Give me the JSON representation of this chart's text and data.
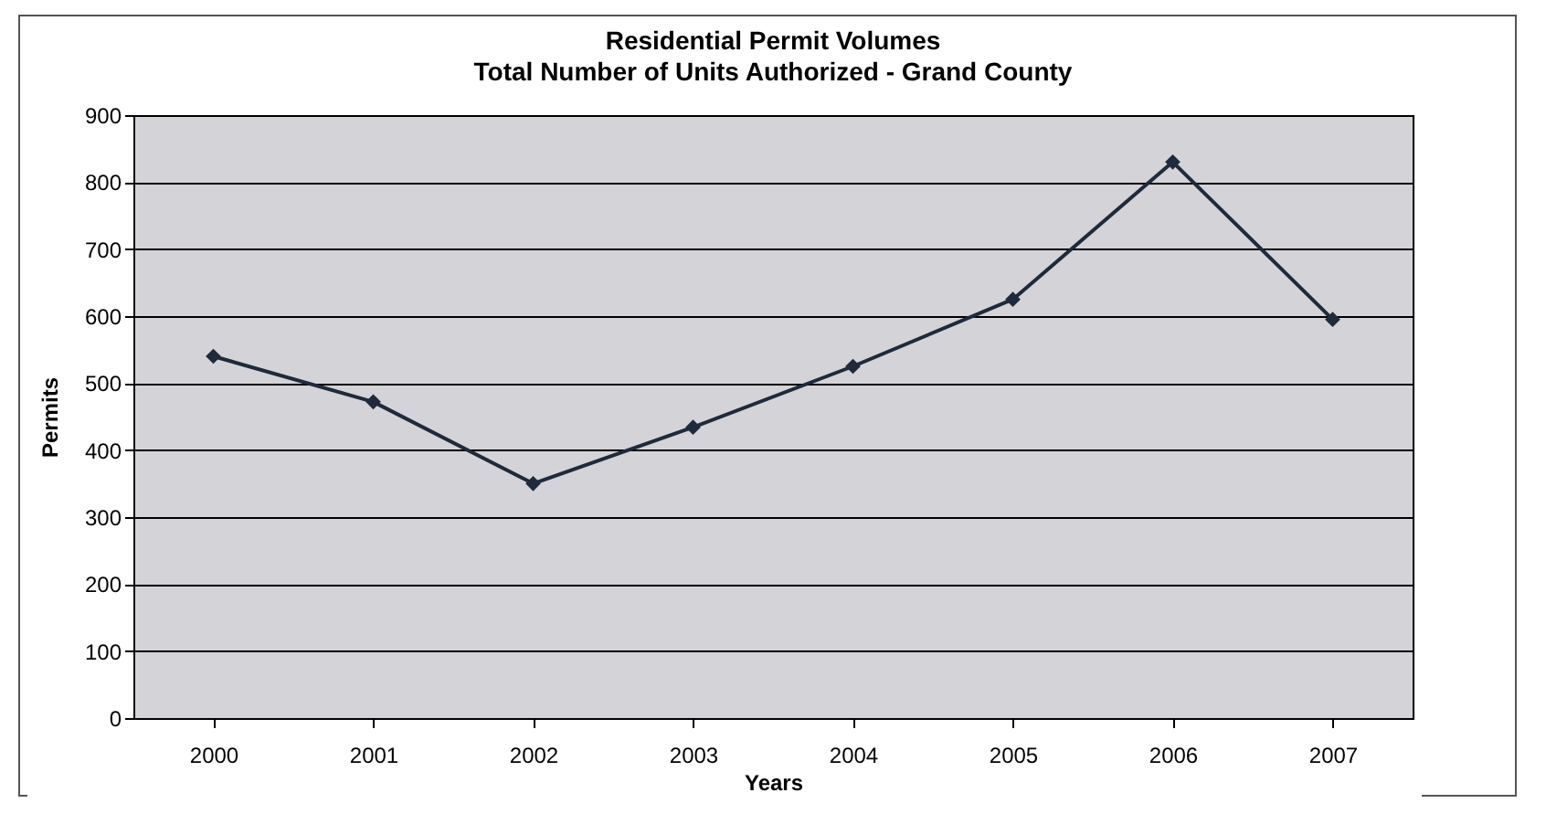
{
  "chart_data": {
    "type": "line",
    "title": "Residential Permit Volumes",
    "subtitle": "Total Number of Units Authorized - Grand County",
    "xlabel": "Years",
    "ylabel": "Permits",
    "categories": [
      "2000",
      "2001",
      "2002",
      "2003",
      "2004",
      "2005",
      "2006",
      "2007"
    ],
    "series": [
      {
        "color": "#1f2a3a",
        "values": [
          540,
          472,
          350,
          434,
          525,
          625,
          830,
          595
        ]
      }
    ],
    "ylim": [
      0,
      900
    ],
    "yticks": [
      0,
      100,
      200,
      300,
      400,
      500,
      600,
      700,
      800,
      900
    ],
    "grid": "y",
    "marker": "diamond",
    "line_style": "solid",
    "legend": false
  }
}
